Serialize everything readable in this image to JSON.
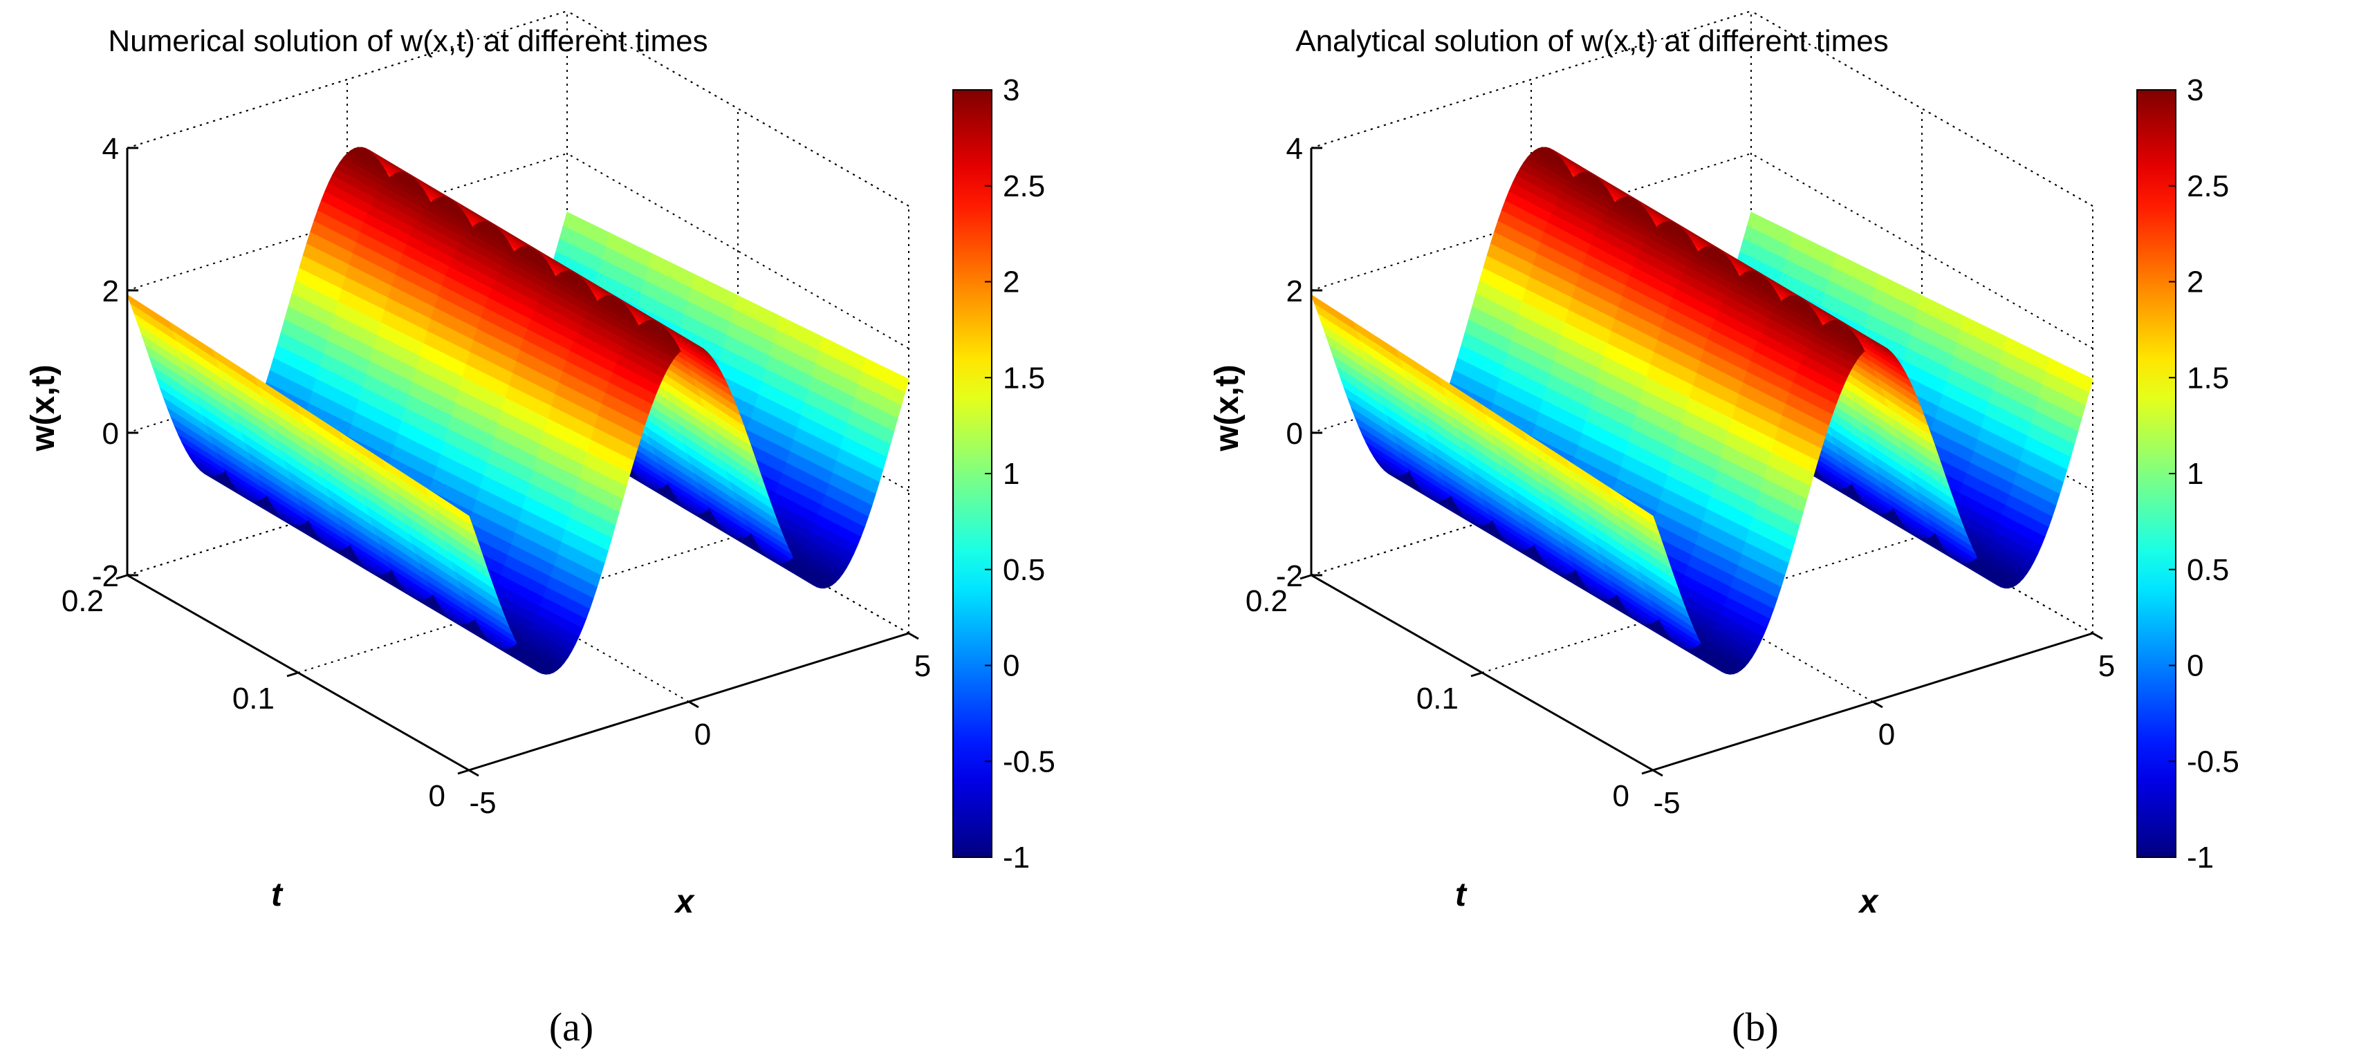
{
  "chart_data": [
    {
      "type": "surface3d",
      "panel_label": "a",
      "title": "Numerical solution of w(x,t) at different times",
      "xlabel": "x",
      "ylabel": "t",
      "zlabel": "w(x,t)",
      "xlim": [
        -5,
        5
      ],
      "ylim": [
        0,
        0.2
      ],
      "zlim": [
        -2,
        4
      ],
      "xticks": [
        "-5",
        "0",
        "5"
      ],
      "yticks": [
        "0",
        "0.1",
        "0.2"
      ],
      "zticks": [
        "-2",
        "0",
        "2",
        "4"
      ],
      "colorbar": {
        "min": -1,
        "max": 3,
        "ticks": [
          "-1",
          "-0.5",
          "0",
          "0.5",
          "1",
          "1.5",
          "2",
          "2.5",
          "3"
        ]
      },
      "surface": {
        "function": "w = 1 + 2*cos(x - t)",
        "x_range": [
          -5,
          5
        ],
        "t_range": [
          0,
          0.2
        ],
        "w_min": -1,
        "w_max": 3
      }
    },
    {
      "type": "surface3d",
      "panel_label": "b",
      "title": "Analytical solution of w(x,t) at different times",
      "xlabel": "x",
      "ylabel": "t",
      "zlabel": "w(x,t)",
      "xlim": [
        -5,
        5
      ],
      "ylim": [
        0,
        0.2
      ],
      "zlim": [
        -2,
        4
      ],
      "xticks": [
        "-5",
        "0",
        "5"
      ],
      "yticks": [
        "0",
        "0.1",
        "0.2"
      ],
      "zticks": [
        "-2",
        "0",
        "2",
        "4"
      ],
      "colorbar": {
        "min": -1,
        "max": 3,
        "ticks": [
          "-1",
          "-0.5",
          "0",
          "0.5",
          "1",
          "1.5",
          "2",
          "2.5",
          "3"
        ]
      },
      "surface": {
        "function": "w = 1 + 2*cos(x - t)",
        "x_range": [
          -5,
          5
        ],
        "t_range": [
          0,
          0.2
        ],
        "w_min": -1,
        "w_max": 3
      }
    }
  ],
  "captions": {
    "a": "(a)",
    "b": "(b)"
  }
}
